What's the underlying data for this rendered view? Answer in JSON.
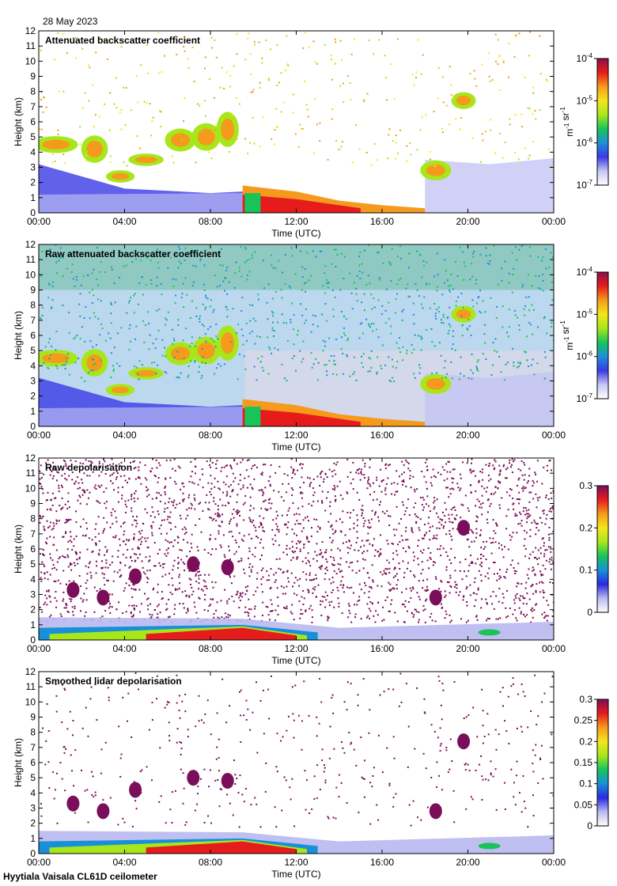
{
  "date": "28 May 2023",
  "footer": "Hyytiala Vaisala CL61D ceilometer",
  "chart_data": [
    {
      "type": "heatmap",
      "title": "Attenuated backscatter coefficient",
      "xlabel": "Time (UTC)",
      "ylabel": "Height (km)",
      "xticks": [
        "00:00",
        "04:00",
        "08:00",
        "12:00",
        "16:00",
        "20:00",
        "00:00"
      ],
      "yticks": [
        "0",
        "1",
        "2",
        "3",
        "4",
        "5",
        "6",
        "7",
        "8",
        "9",
        "10",
        "11",
        "12"
      ],
      "ylim": [
        0,
        12
      ],
      "colorbar": {
        "scale": "log",
        "ticks": [
          "10-7",
          "10-6",
          "10-5",
          "10-4"
        ],
        "label": "m-1 sr-1",
        "range": [
          1e-07,
          0.0001
        ]
      }
    },
    {
      "type": "heatmap",
      "title": "Raw attenuated backscatter coefficient",
      "xlabel": "Time (UTC)",
      "ylabel": "Height (km)",
      "xticks": [
        "00:00",
        "04:00",
        "08:00",
        "12:00",
        "16:00",
        "20:00",
        "00:00"
      ],
      "yticks": [
        "0",
        "1",
        "2",
        "3",
        "4",
        "5",
        "6",
        "7",
        "8",
        "9",
        "10",
        "11",
        "12"
      ],
      "ylim": [
        0,
        12
      ],
      "colorbar": {
        "scale": "log",
        "ticks": [
          "10-7",
          "10-6",
          "10-5",
          "10-4"
        ],
        "label": "m-1 sr-1",
        "range": [
          1e-07,
          0.0001
        ]
      }
    },
    {
      "type": "heatmap",
      "title": "Raw depolarisation",
      "xlabel": "Time (UTC)",
      "ylabel": "Height (km)",
      "xticks": [
        "00:00",
        "04:00",
        "08:00",
        "12:00",
        "16:00",
        "20:00",
        "00:00"
      ],
      "yticks": [
        "0",
        "1",
        "2",
        "3",
        "4",
        "5",
        "6",
        "7",
        "8",
        "9",
        "10",
        "11",
        "12"
      ],
      "ylim": [
        0,
        12
      ],
      "colorbar": {
        "scale": "linear",
        "ticks": [
          "0",
          "0.1",
          "0.2",
          "0.3"
        ],
        "label": "",
        "range": [
          0,
          0.3
        ]
      }
    },
    {
      "type": "heatmap",
      "title": "Smoothed lidar depolarisation",
      "xlabel": "Time (UTC)",
      "ylabel": "Height (km)",
      "xticks": [
        "00:00",
        "04:00",
        "08:00",
        "12:00",
        "16:00",
        "20:00",
        "00:00"
      ],
      "yticks": [
        "0",
        "1",
        "2",
        "3",
        "4",
        "5",
        "6",
        "7",
        "8",
        "9",
        "10",
        "11",
        "12"
      ],
      "ylim": [
        0,
        12
      ],
      "colorbar": {
        "scale": "linear",
        "ticks": [
          "0",
          "0.05",
          "0.1",
          "0.15",
          "0.2",
          "0.25",
          "0.3"
        ],
        "label": "",
        "range": [
          0,
          0.3
        ]
      }
    }
  ],
  "colors": {
    "backscatter_scale": [
      "#ffffff",
      "#c6c6f5",
      "#3a3ae6",
      "#1f8fd8",
      "#18c45a",
      "#a8e61c",
      "#f5e61c",
      "#f59a1c",
      "#e61c1c",
      "#8a0f4a"
    ],
    "depol_scale": [
      "#ffffff",
      "#b8b8f0",
      "#2a2ae0",
      "#1890d8",
      "#18c45a",
      "#a8e61c",
      "#f5e61c",
      "#f59a1c",
      "#e61c1c",
      "#7a0e5a"
    ]
  }
}
